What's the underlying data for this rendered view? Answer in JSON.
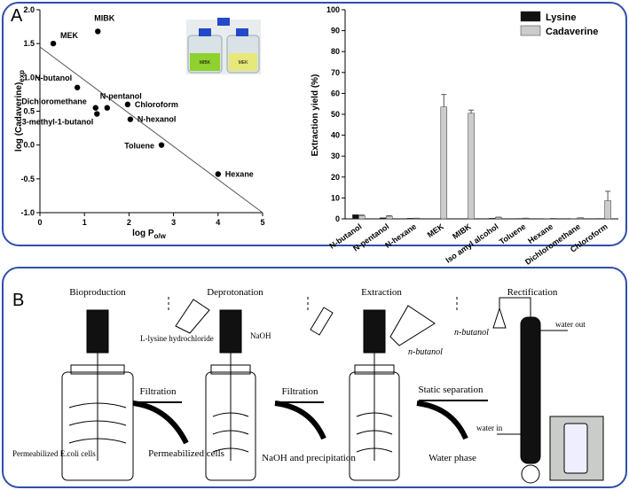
{
  "panel_a": {
    "label": "A",
    "inset_labels": [
      "MIBK",
      "MEK"
    ]
  },
  "chart_data": [
    {
      "type": "scatter",
      "x_label": {
        "text": "log P",
        "subscript": "o/w"
      },
      "y_label": {
        "text": "log (Cadaverine)",
        "subscript": "exp"
      },
      "labels": [
        "MEK",
        "MIBK",
        "N-butanol",
        "Dichloromethane",
        "3-methyl-1-butanol",
        "N-pentanol",
        "Chloroform",
        "N-hexanol",
        "Toluene",
        "Hexane"
      ],
      "x": [
        0.3,
        1.3,
        0.84,
        1.25,
        1.28,
        1.51,
        1.97,
        2.03,
        2.73,
        4.0
      ],
      "values": [
        1.5,
        1.68,
        0.85,
        0.55,
        0.46,
        0.55,
        0.6,
        0.38,
        0.0,
        -0.43
      ],
      "color": "#000000",
      "trendline": {
        "x": [
          0,
          5
        ],
        "values": [
          1.45,
          -1.0
        ]
      },
      "xlim": [
        0,
        5
      ],
      "xticks": [
        0,
        1,
        2,
        3,
        4,
        5
      ],
      "ylim": [
        -1.0,
        2.0
      ],
      "yticks": [
        {
          "value": -1.0,
          "label": "-1.0"
        },
        -0.5,
        {
          "value": 0,
          "label": "0.0"
        },
        0.5,
        {
          "value": 1.0,
          "label": "1.0"
        },
        1.5,
        {
          "value": 2.0,
          "label": "2.0"
        }
      ]
    },
    {
      "type": "bar",
      "y_label": "Extraction yield (%)",
      "categories": [
        "N-butanol",
        "N-pentanol",
        "N-hexane",
        "MEK",
        "MIBK",
        "Iso amyl alcohol",
        "Toluene",
        "Hexane",
        "Dichloromethane",
        "Chloroform"
      ],
      "series": [
        {
          "name": "Lysine",
          "color": "#111111",
          "values": [
            2,
            0.5,
            0.3,
            0,
            0,
            0.3,
            0.2,
            0.1,
            0.1,
            0.2
          ]
        },
        {
          "name": "Cadaverine",
          "color": "#cccccc",
          "values": [
            1.5,
            1.3,
            0.3,
            53.5,
            50.5,
            0.8,
            0.3,
            0.2,
            0.5,
            8.7
          ],
          "errors": [
            0.3,
            0.2,
            0,
            6,
            1.5,
            0,
            0,
            0,
            0,
            4.5
          ]
        }
      ],
      "ylim": [
        0,
        100
      ],
      "yticks": [
        0,
        10,
        20,
        30,
        40,
        50,
        60,
        70,
        80,
        90,
        100
      ],
      "legend": "top-right"
    }
  ],
  "panel_b": {
    "label": "B",
    "stages": [
      "Bioproduction",
      "Deprotonation",
      "Extraction",
      "Rectification"
    ],
    "reagents": [
      "L-lysine hydrochloride",
      "NaOH",
      "n-butanol",
      "n-butanol"
    ],
    "cells": "Permeabilized E.coli cells",
    "steps": [
      {
        "name": "Filtration",
        "waste": "Permeabilized cells"
      },
      {
        "name": "Filtration",
        "waste": "NaOH and precipitation"
      },
      {
        "name": "Static separation",
        "waste": "Water phase"
      }
    ],
    "water_out": "water out",
    "water_in": "water in"
  }
}
